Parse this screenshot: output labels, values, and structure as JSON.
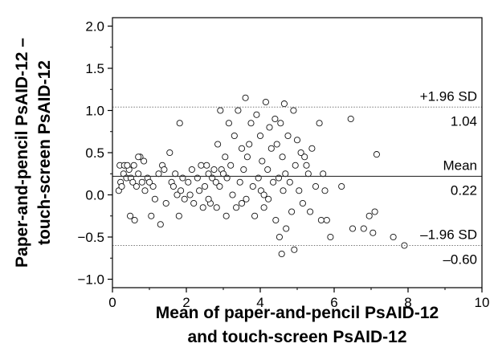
{
  "chart_data": {
    "type": "scatter",
    "title": "",
    "xlabel": [
      "Mean of paper-and-pencil PsAID-12",
      "and touch-screen PsAID-12"
    ],
    "ylabel": [
      "Paper-and-pencil PsAID-12 –",
      "touch-screen PsAID-12"
    ],
    "xlim": [
      0,
      10
    ],
    "ylim": [
      -1.1,
      2.1
    ],
    "x_ticks": [
      0,
      2,
      4,
      6,
      8,
      10
    ],
    "x_tick_labels": [
      "0",
      "2",
      "4",
      "6",
      "8",
      "10"
    ],
    "y_ticks": [
      2.0,
      1.5,
      1.0,
      0.5,
      0.0,
      -0.5,
      -1.0
    ],
    "y_tick_labels": [
      "2.0",
      "1.5",
      "1.0",
      "0.5",
      "0.0",
      "−0.5",
      "−1.0"
    ],
    "grid": false,
    "reference_lines": [
      {
        "value": 1.04,
        "style": "dotted",
        "label": "+1.96 SD",
        "value_label": "1.04"
      },
      {
        "value": 0.22,
        "style": "solid",
        "label": "Mean",
        "value_label": "0.22"
      },
      {
        "value": -0.6,
        "style": "dotted",
        "label": "–1.96 SD",
        "value_label": "–0.60"
      }
    ],
    "points": [
      [
        0.17,
        0.05
      ],
      [
        0.2,
        0.35
      ],
      [
        0.22,
        0.15
      ],
      [
        0.25,
        0.1
      ],
      [
        0.3,
        0.25
      ],
      [
        0.32,
        0.35
      ],
      [
        0.38,
        0.2
      ],
      [
        0.45,
        0.3
      ],
      [
        0.48,
        -0.25
      ],
      [
        0.5,
        0.2
      ],
      [
        0.55,
        0.15
      ],
      [
        0.58,
        0.35
      ],
      [
        0.6,
        -0.3
      ],
      [
        0.65,
        0.1
      ],
      [
        0.7,
        0.25
      ],
      [
        0.75,
        0.45
      ],
      [
        0.8,
        0.15
      ],
      [
        0.85,
        0.4
      ],
      [
        0.88,
        0.05
      ],
      [
        0.95,
        0.2
      ],
      [
        1.05,
        -0.25
      ],
      [
        1.1,
        0.1
      ],
      [
        1.15,
        -0.05
      ],
      [
        1.25,
        0.25
      ],
      [
        1.3,
        -0.35
      ],
      [
        1.35,
        0.35
      ],
      [
        1.4,
        0.3
      ],
      [
        1.45,
        -0.1
      ],
      [
        1.55,
        0.5
      ],
      [
        1.6,
        0.15
      ],
      [
        1.65,
        0.1
      ],
      [
        1.7,
        0.25
      ],
      [
        1.75,
        0.0
      ],
      [
        1.8,
        -0.25
      ],
      [
        1.82,
        0.85
      ],
      [
        1.85,
        0.05
      ],
      [
        1.9,
        0.2
      ],
      [
        1.95,
        -0.05
      ],
      [
        2.05,
        0.15
      ],
      [
        2.15,
        0.3
      ],
      [
        2.2,
        -0.1
      ],
      [
        2.3,
        0.2
      ],
      [
        2.35,
        0.05
      ],
      [
        2.4,
        0.35
      ],
      [
        2.45,
        -0.15
      ],
      [
        2.5,
        0.1
      ],
      [
        2.55,
        0.35
      ],
      [
        2.6,
        0.25
      ],
      [
        2.65,
        -0.1
      ],
      [
        2.7,
        0.2
      ],
      [
        2.75,
        0.3
      ],
      [
        2.8,
        0.15
      ],
      [
        2.82,
        -0.15
      ],
      [
        2.85,
        0.6
      ],
      [
        2.9,
        0.1
      ],
      [
        2.92,
        1.0
      ],
      [
        2.95,
        0.3
      ],
      [
        3.0,
        0.25
      ],
      [
        3.05,
        0.45
      ],
      [
        3.08,
        -0.25
      ],
      [
        3.1,
        0.2
      ],
      [
        3.15,
        0.85
      ],
      [
        3.2,
        0.35
      ],
      [
        3.25,
        0.0
      ],
      [
        3.3,
        0.7
      ],
      [
        3.35,
        -0.15
      ],
      [
        3.4,
        1.0
      ],
      [
        3.45,
        0.15
      ],
      [
        3.5,
        0.55
      ],
      [
        3.55,
        0.3
      ],
      [
        3.6,
        1.15
      ],
      [
        3.62,
        -0.05
      ],
      [
        3.65,
        0.45
      ],
      [
        3.7,
        0.6
      ],
      [
        3.75,
        0.85
      ],
      [
        3.8,
        0.1
      ],
      [
        3.85,
        -0.25
      ],
      [
        3.9,
        0.95
      ],
      [
        3.95,
        0.2
      ],
      [
        4.0,
        0.7
      ],
      [
        4.02,
        0.05
      ],
      [
        4.05,
        0.4
      ],
      [
        4.1,
        -0.15
      ],
      [
        4.15,
        1.1
      ],
      [
        4.2,
        0.3
      ],
      [
        4.22,
        -0.05
      ],
      [
        4.25,
        0.8
      ],
      [
        4.3,
        0.55
      ],
      [
        4.35,
        0.15
      ],
      [
        4.4,
        0.9
      ],
      [
        4.42,
        -0.3
      ],
      [
        4.45,
        0.6
      ],
      [
        4.5,
        0.2
      ],
      [
        4.52,
        -0.5
      ],
      [
        4.55,
        0.85
      ],
      [
        4.58,
        -0.7
      ],
      [
        4.6,
        0.45
      ],
      [
        4.62,
        0.05
      ],
      [
        4.65,
        1.08
      ],
      [
        4.68,
        0.25
      ],
      [
        4.7,
        -0.4
      ],
      [
        4.75,
        0.7
      ],
      [
        4.8,
        0.15
      ],
      [
        4.85,
        -0.2
      ],
      [
        4.9,
        1.0
      ],
      [
        4.92,
        -0.65
      ],
      [
        4.95,
        0.35
      ],
      [
        5.0,
        0.65
      ],
      [
        5.05,
        0.05
      ],
      [
        5.1,
        0.5
      ],
      [
        5.15,
        -0.1
      ],
      [
        5.2,
        0.45
      ],
      [
        5.3,
        0.25
      ],
      [
        5.35,
        -0.2
      ],
      [
        5.4,
        0.55
      ],
      [
        5.5,
        0.1
      ],
      [
        5.6,
        0.85
      ],
      [
        5.65,
        -0.3
      ],
      [
        5.7,
        0.25
      ],
      [
        5.75,
        0.05
      ],
      [
        5.8,
        -0.3
      ],
      [
        5.9,
        -0.5
      ],
      [
        6.2,
        0.1
      ],
      [
        6.45,
        0.9
      ],
      [
        6.5,
        -0.4
      ],
      [
        6.8,
        -0.4
      ],
      [
        6.95,
        -0.25
      ],
      [
        7.05,
        -0.45
      ],
      [
        7.1,
        -0.2
      ],
      [
        7.15,
        0.48
      ],
      [
        7.6,
        -0.5
      ],
      [
        7.9,
        -0.6
      ],
      [
        0.4,
        0.35
      ],
      [
        1.0,
        0.15
      ],
      [
        2.1,
        0.0
      ],
      [
        3.5,
        -0.1
      ],
      [
        4.1,
        0.0
      ],
      [
        2.6,
        -0.05
      ],
      [
        5.25,
        0.35
      ],
      [
        0.7,
        0.45
      ]
    ]
  }
}
